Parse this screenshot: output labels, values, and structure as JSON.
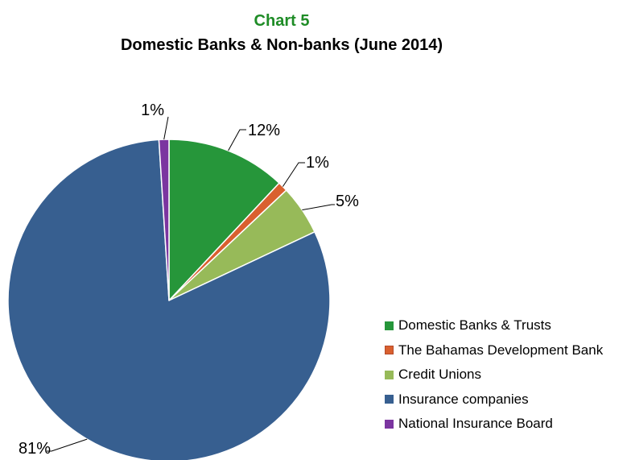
{
  "chart_data": {
    "type": "pie",
    "title": "Chart 5",
    "subtitle": "Domestic Banks & Non-banks (June 2014)",
    "title_color": "#1e8c26",
    "legend_position": "right",
    "slices": [
      {
        "name": "Domestic Banks & Trusts",
        "value": 12,
        "label": "12%",
        "color": "#26963a",
        "stroke": "#26963a"
      },
      {
        "name": "The Bahamas Development Bank",
        "value": 1,
        "label": "1%",
        "color": "#d9602f",
        "stroke": "#b44a2a"
      },
      {
        "name": "Credit Unions",
        "value": 5,
        "label": "5%",
        "color": "#97ba59",
        "stroke": "#97ba59"
      },
      {
        "name": "Insurance companies",
        "value": 81,
        "label": "81%",
        "color": "#375f90",
        "stroke": "#375f90"
      },
      {
        "name": "National Insurance Board",
        "value": 1,
        "label": "1%",
        "color": "#7b35a0",
        "stroke": "#7b35a0"
      }
    ]
  }
}
